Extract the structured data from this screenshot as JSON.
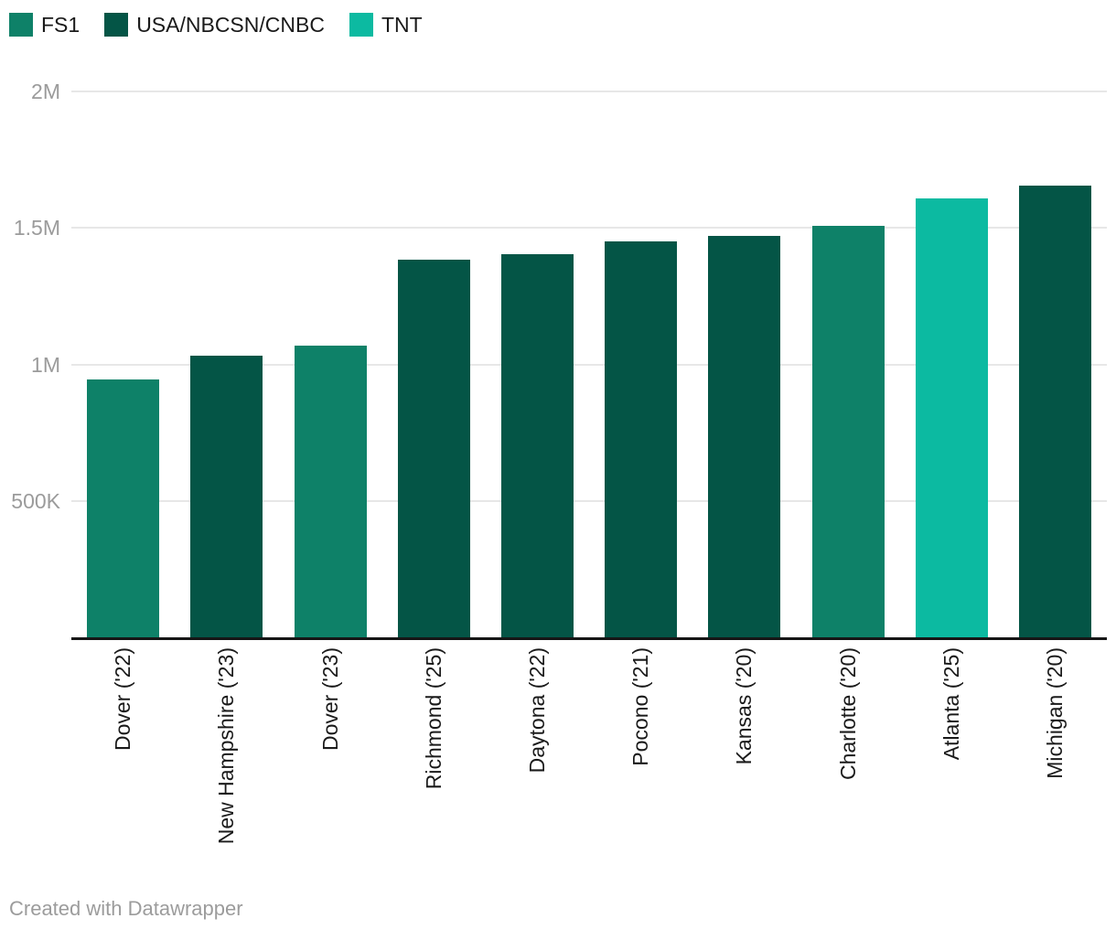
{
  "legend": {
    "items": [
      {
        "label": "FS1",
        "color": "#0e8168"
      },
      {
        "label": "USA/NBCSN/CNBC",
        "color": "#045546"
      },
      {
        "label": "TNT",
        "color": "#0cbaa1"
      }
    ]
  },
  "chart_data": {
    "type": "bar",
    "title": "",
    "categories": [
      "Dover ('22)",
      "New Hampshire ('23)",
      "Dover ('23)",
      "Richmond ('25)",
      "Daytona ('22)",
      "Pocono ('21)",
      "Kansas ('20)",
      "Charlotte ('20)",
      "Atlanta ('25)",
      "Michigan ('20)"
    ],
    "values": [
      945000,
      1035000,
      1070000,
      1385000,
      1405000,
      1450000,
      1470000,
      1510000,
      1610000,
      1655000
    ],
    "bar_series": [
      "FS1",
      "USA/NBCSN/CNBC",
      "FS1",
      "USA/NBCSN/CNBC",
      "USA/NBCSN/CNBC",
      "USA/NBCSN/CNBC",
      "USA/NBCSN/CNBC",
      "FS1",
      "TNT",
      "USA/NBCSN/CNBC"
    ],
    "series_colors": {
      "FS1": "#0e8168",
      "USA/NBCSN/CNBC": "#045546",
      "TNT": "#0cbaa1"
    },
    "y_ticks": [
      "2M",
      "1.5M",
      "1M",
      "500K"
    ],
    "y_tick_values": [
      2000000,
      1500000,
      1000000,
      500000
    ],
    "ylim": [
      0,
      2000000
    ],
    "grid": true,
    "legend_position": "top",
    "xlabel": "",
    "ylabel": ""
  },
  "footer": {
    "credit": "Created with Datawrapper"
  }
}
